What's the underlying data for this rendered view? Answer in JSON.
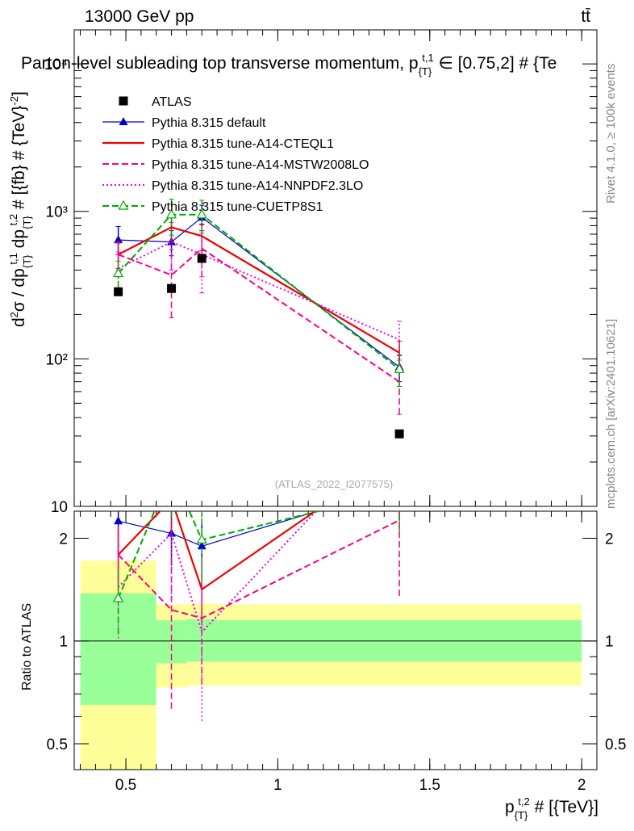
{
  "header": {
    "energy_label": "13000 GeV pp",
    "process_label": "tt̄",
    "title": "Parton-level subleading top transverse momentum, p_{T}^{t,1} ∈ [0.75,2] # {Te",
    "watermark": "(ATLAS_2022_I2077575)",
    "side_label_top": "Rivet 4.1.0, ≥ 100k events",
    "side_label_bottom": "mcplots.cern.ch [arXiv:2401.10621]"
  },
  "axes": {
    "main_ylabel": "d²σ / dp_{T}^{t,1} dp_{T}^{t,2} # [{fb} # {TeV}^{-2}]",
    "ratio_ylabel": "Ratio to ATLAS",
    "xlabel": "p_{T}^{t,2} # [{TeV}]",
    "xlim": [
      0.33,
      2.05
    ],
    "main_ylim_log": [
      10,
      17000
    ],
    "ratio_ylim_log": [
      0.42,
      2.4
    ],
    "x_ticks": [
      {
        "v": 0.5,
        "label": "0.5"
      },
      {
        "v": 1.0,
        "label": "1"
      },
      {
        "v": 1.5,
        "label": "1.5"
      },
      {
        "v": 2.0,
        "label": "2"
      }
    ],
    "main_y_ticks": [
      {
        "v": 10,
        "label": "10"
      },
      {
        "v": 100,
        "label": "10²"
      },
      {
        "v": 1000,
        "label": "10³"
      },
      {
        "v": 10000,
        "label": "10⁴"
      }
    ],
    "ratio_y_ticks": [
      {
        "v": 0.5,
        "label": "0.5"
      },
      {
        "v": 1,
        "label": "1"
      },
      {
        "v": 2,
        "label": "2"
      }
    ]
  },
  "chart_data": {
    "type": "line",
    "title": "Parton-level subleading top transverse momentum",
    "x": [
      0.475,
      0.65,
      0.75,
      1.4
    ],
    "bin_edges": [
      0.35,
      0.6,
      0.7,
      0.8,
      2.0
    ],
    "data": {
      "name": "ATLAS",
      "values": [
        285,
        300,
        480,
        31
      ]
    },
    "uncertainty_bands": {
      "inner_lo": [
        0.65,
        0.86,
        0.87,
        0.87
      ],
      "inner_hi": [
        1.38,
        1.15,
        1.16,
        1.15
      ],
      "outer_lo": [
        0.42,
        0.73,
        0.74,
        0.74
      ],
      "outer_hi": [
        1.72,
        1.28,
        1.29,
        1.28
      ],
      "colors": {
        "inner": "#99ff99",
        "outer": "#ffff99"
      }
    },
    "series": [
      {
        "name": "Pythia 8.315 default",
        "color": "#0000cc",
        "style": "solid",
        "marker": "triangle",
        "values": [
          640,
          620,
          910,
          88
        ],
        "err_lo": [
          130,
          120,
          170,
          18
        ],
        "err_hi": [
          150,
          120,
          190,
          18
        ]
      },
      {
        "name": "Pythia 8.315 tune-A14-CTEQL1",
        "color": "#ee0000",
        "style": "solid",
        "marker": "none",
        "values": [
          510,
          780,
          680,
          110
        ],
        "err_lo": [
          100,
          160,
          140,
          22
        ],
        "err_hi": [
          100,
          160,
          140,
          22
        ]
      },
      {
        "name": "Pythia 8.315 tune-A14-MSTW2008LO",
        "color": "#ff0080",
        "style": "dashed",
        "marker": "none",
        "values": [
          510,
          370,
          560,
          70
        ],
        "err_lo": [
          110,
          180,
          200,
          28
        ],
        "err_hi": [
          110,
          180,
          250,
          28
        ]
      },
      {
        "name": "Pythia 8.315 tune-A14-NNPDF2.3LO",
        "color": "#ee00ee",
        "style": "dotted",
        "marker": "none",
        "values": [
          410,
          620,
          510,
          135
        ],
        "err_lo": [
          120,
          220,
          230,
          45
        ],
        "err_hi": [
          120,
          220,
          230,
          45
        ]
      },
      {
        "name": "Pythia 8.315 tune-CUETP8S1",
        "color": "#00aa00",
        "style": "dashed",
        "marker": "open-triangle",
        "values": [
          380,
          950,
          950,
          85
        ],
        "err_lo": [
          80,
          260,
          240,
          20
        ],
        "err_hi": [
          80,
          260,
          240,
          20
        ]
      }
    ]
  }
}
